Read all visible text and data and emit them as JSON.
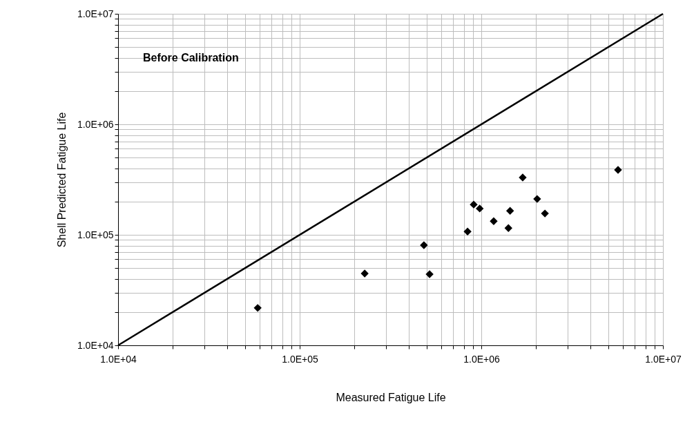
{
  "chart_data": {
    "type": "scatter",
    "xlabel": "Measured Fatigue Life",
    "ylabel": "Shell Predicted Fatigue Life",
    "annotations": [
      "Before Calibration"
    ],
    "log": "xy",
    "grid": true,
    "marker": "diamond",
    "xlim": [
      10000,
      10000000
    ],
    "ylim": [
      10000,
      10000000
    ],
    "xticks": [
      {
        "value": 10000,
        "label": "1.0E+04"
      },
      {
        "value": 20000,
        "label": null
      },
      {
        "value": 30000,
        "label": null
      },
      {
        "value": 40000,
        "label": null
      },
      {
        "value": 50000,
        "label": null
      },
      {
        "value": 60000,
        "label": null
      },
      {
        "value": 70000,
        "label": null
      },
      {
        "value": 80000,
        "label": null
      },
      {
        "value": 90000,
        "label": null
      },
      {
        "value": 100000,
        "label": "1.0E+05"
      },
      {
        "value": 200000,
        "label": null
      },
      {
        "value": 300000,
        "label": null
      },
      {
        "value": 400000,
        "label": null
      },
      {
        "value": 500000,
        "label": null
      },
      {
        "value": 600000,
        "label": null
      },
      {
        "value": 700000,
        "label": null
      },
      {
        "value": 800000,
        "label": null
      },
      {
        "value": 900000,
        "label": null
      },
      {
        "value": 1000000,
        "label": "1.0E+06"
      },
      {
        "value": 2000000,
        "label": null
      },
      {
        "value": 3000000,
        "label": null
      },
      {
        "value": 4000000,
        "label": null
      },
      {
        "value": 5000000,
        "label": null
      },
      {
        "value": 6000000,
        "label": null
      },
      {
        "value": 7000000,
        "label": null
      },
      {
        "value": 8000000,
        "label": null
      },
      {
        "value": 9000000,
        "label": null
      },
      {
        "value": 10000000,
        "label": "1.0E+07"
      }
    ],
    "yticks": [
      {
        "value": 10000,
        "label": "1.0E+04"
      },
      {
        "value": 20000,
        "label": null
      },
      {
        "value": 30000,
        "label": null
      },
      {
        "value": 40000,
        "label": null
      },
      {
        "value": 50000,
        "label": null
      },
      {
        "value": 60000,
        "label": null
      },
      {
        "value": 70000,
        "label": null
      },
      {
        "value": 80000,
        "label": null
      },
      {
        "value": 90000,
        "label": null
      },
      {
        "value": 100000,
        "label": "1.0E+05"
      },
      {
        "value": 200000,
        "label": null
      },
      {
        "value": 300000,
        "label": null
      },
      {
        "value": 400000,
        "label": null
      },
      {
        "value": 500000,
        "label": null
      },
      {
        "value": 600000,
        "label": null
      },
      {
        "value": 700000,
        "label": null
      },
      {
        "value": 800000,
        "label": null
      },
      {
        "value": 900000,
        "label": null
      },
      {
        "value": 1000000,
        "label": "1.0E+06"
      },
      {
        "value": 2000000,
        "label": null
      },
      {
        "value": 3000000,
        "label": null
      },
      {
        "value": 4000000,
        "label": null
      },
      {
        "value": 5000000,
        "label": null
      },
      {
        "value": 6000000,
        "label": null
      },
      {
        "value": 7000000,
        "label": null
      },
      {
        "value": 8000000,
        "label": null
      },
      {
        "value": 9000000,
        "label": null
      },
      {
        "value": 10000000,
        "label": "1.0E+07"
      }
    ],
    "series": [
      {
        "color": "#000000",
        "x": [
          58700,
          228000,
          483000,
          519000,
          840000,
          908000,
          980000,
          1170000,
          1410000,
          1440000,
          1690000,
          2030000,
          2240000,
          5660000
        ],
        "values": [
          21800,
          44700,
          80600,
          44000,
          107000,
          188000,
          173000,
          133000,
          115000,
          165000,
          330000,
          211000,
          156000,
          387000
        ]
      },
      {
        "type": "line",
        "color": "#000000",
        "marker": "none",
        "line_style": "solid",
        "x": [
          10000,
          10000000
        ],
        "values": [
          10000,
          10000000
        ]
      }
    ]
  }
}
